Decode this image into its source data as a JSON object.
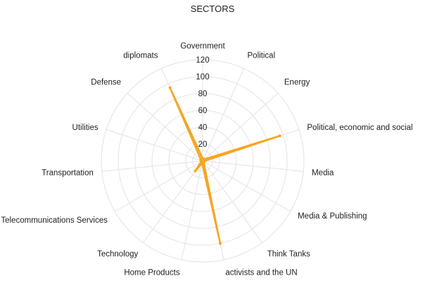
{
  "chart_data": {
    "type": "radar",
    "title": "SECTORS",
    "categories": [
      "Government",
      "Political",
      "Energy",
      "Political, economic and social",
      "Media",
      "Media & Publishing",
      "Think Tanks",
      "activists and the UN",
      "Home Products",
      "Technology",
      "Telecommunications Services",
      "Transportation",
      "Utilities",
      "Defense",
      "diplomats"
    ],
    "series": [
      {
        "values": [
          3,
          2,
          3,
          96,
          2,
          2,
          2,
          100,
          3,
          15,
          2,
          2,
          2,
          3,
          95
        ]
      }
    ],
    "rlim": [
      0,
      120
    ],
    "ticks": [
      20,
      40,
      60,
      80,
      100,
      120
    ],
    "grid": true,
    "series_color": "#f5a623",
    "fill_color": "#f5c84a"
  }
}
